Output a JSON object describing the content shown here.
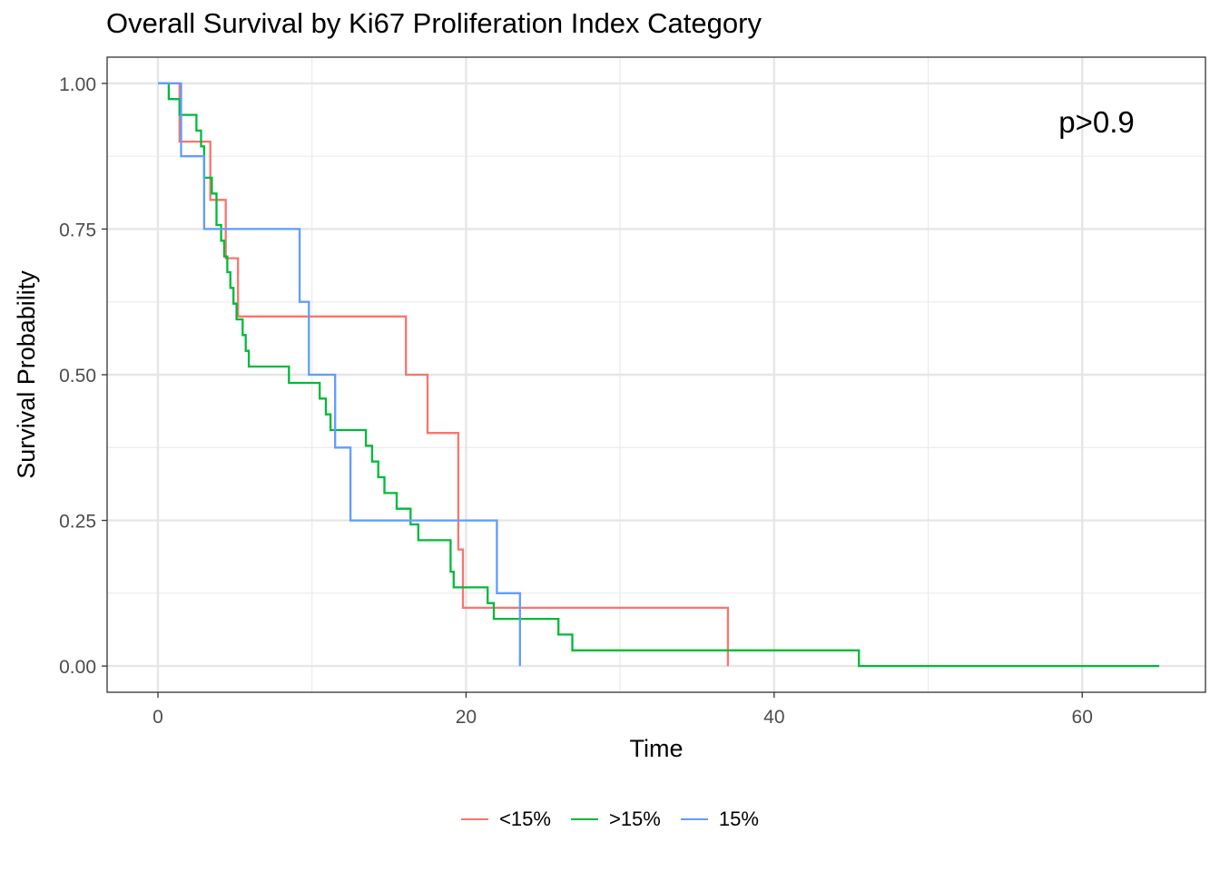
{
  "chart_data": {
    "type": "line",
    "title": "Overall Survival by Ki67 Proliferation Index Category",
    "xlabel": "Time",
    "ylabel": "Survival Probability",
    "xlim": [
      -3.3,
      68
    ],
    "ylim": [
      -0.045,
      1.045
    ],
    "x_ticks": [
      0,
      20,
      40,
      60
    ],
    "x_tick_labels": [
      "0",
      "20",
      "40",
      "60"
    ],
    "x_minor_ticks": [
      10,
      30,
      50
    ],
    "y_ticks": [
      0,
      0.25,
      0.5,
      0.75,
      1.0
    ],
    "y_tick_labels": [
      "0.00",
      "0.25",
      "0.50",
      "0.75",
      "1.00"
    ],
    "y_minor_ticks": [
      0.125,
      0.375,
      0.625,
      0.875
    ],
    "grid": true,
    "step": true,
    "legend_position": "bottom",
    "annotation": "p>0.9",
    "series": [
      {
        "name": "<15%",
        "color": "#F8766D",
        "x": [
          0,
          1.4,
          3.4,
          4.4,
          5.2,
          16.1,
          17.5,
          19.5,
          19.8,
          37.0,
          37.0
        ],
        "y": [
          1.0,
          0.9,
          0.8,
          0.7,
          0.6,
          0.5,
          0.4,
          0.2,
          0.1,
          0.0,
          0.0
        ]
      },
      {
        "name": ">15%",
        "color": "#00BA38",
        "x": [
          0,
          0.7,
          1.4,
          2.5,
          2.8,
          3.0,
          3.5,
          3.8,
          4.1,
          4.3,
          4.5,
          4.7,
          4.9,
          5.1,
          5.5,
          5.7,
          5.9,
          8.5,
          10.5,
          10.9,
          11.2,
          13.5,
          13.9,
          14.3,
          14.7,
          15.5,
          16.4,
          16.9,
          19.0,
          19.2,
          21.4,
          21.8,
          26.0,
          26.9,
          45.5,
          65.0,
          65.0
        ],
        "y": [
          1.0,
          0.973,
          0.946,
          0.919,
          0.892,
          0.838,
          0.811,
          0.757,
          0.73,
          0.703,
          0.676,
          0.649,
          0.622,
          0.595,
          0.568,
          0.541,
          0.514,
          0.486,
          0.459,
          0.432,
          0.405,
          0.378,
          0.351,
          0.324,
          0.297,
          0.27,
          0.243,
          0.216,
          0.162,
          0.135,
          0.108,
          0.081,
          0.054,
          0.027,
          0.0,
          0.0,
          0.0
        ]
      },
      {
        "name": "15%",
        "color": "#619CFF",
        "x": [
          0,
          1.5,
          3.0,
          9.2,
          9.8,
          11.5,
          12.5,
          22.0,
          23.5,
          23.5
        ],
        "y": [
          1.0,
          0.875,
          0.75,
          0.625,
          0.5,
          0.375,
          0.25,
          0.125,
          0.0,
          0.0
        ]
      }
    ]
  }
}
